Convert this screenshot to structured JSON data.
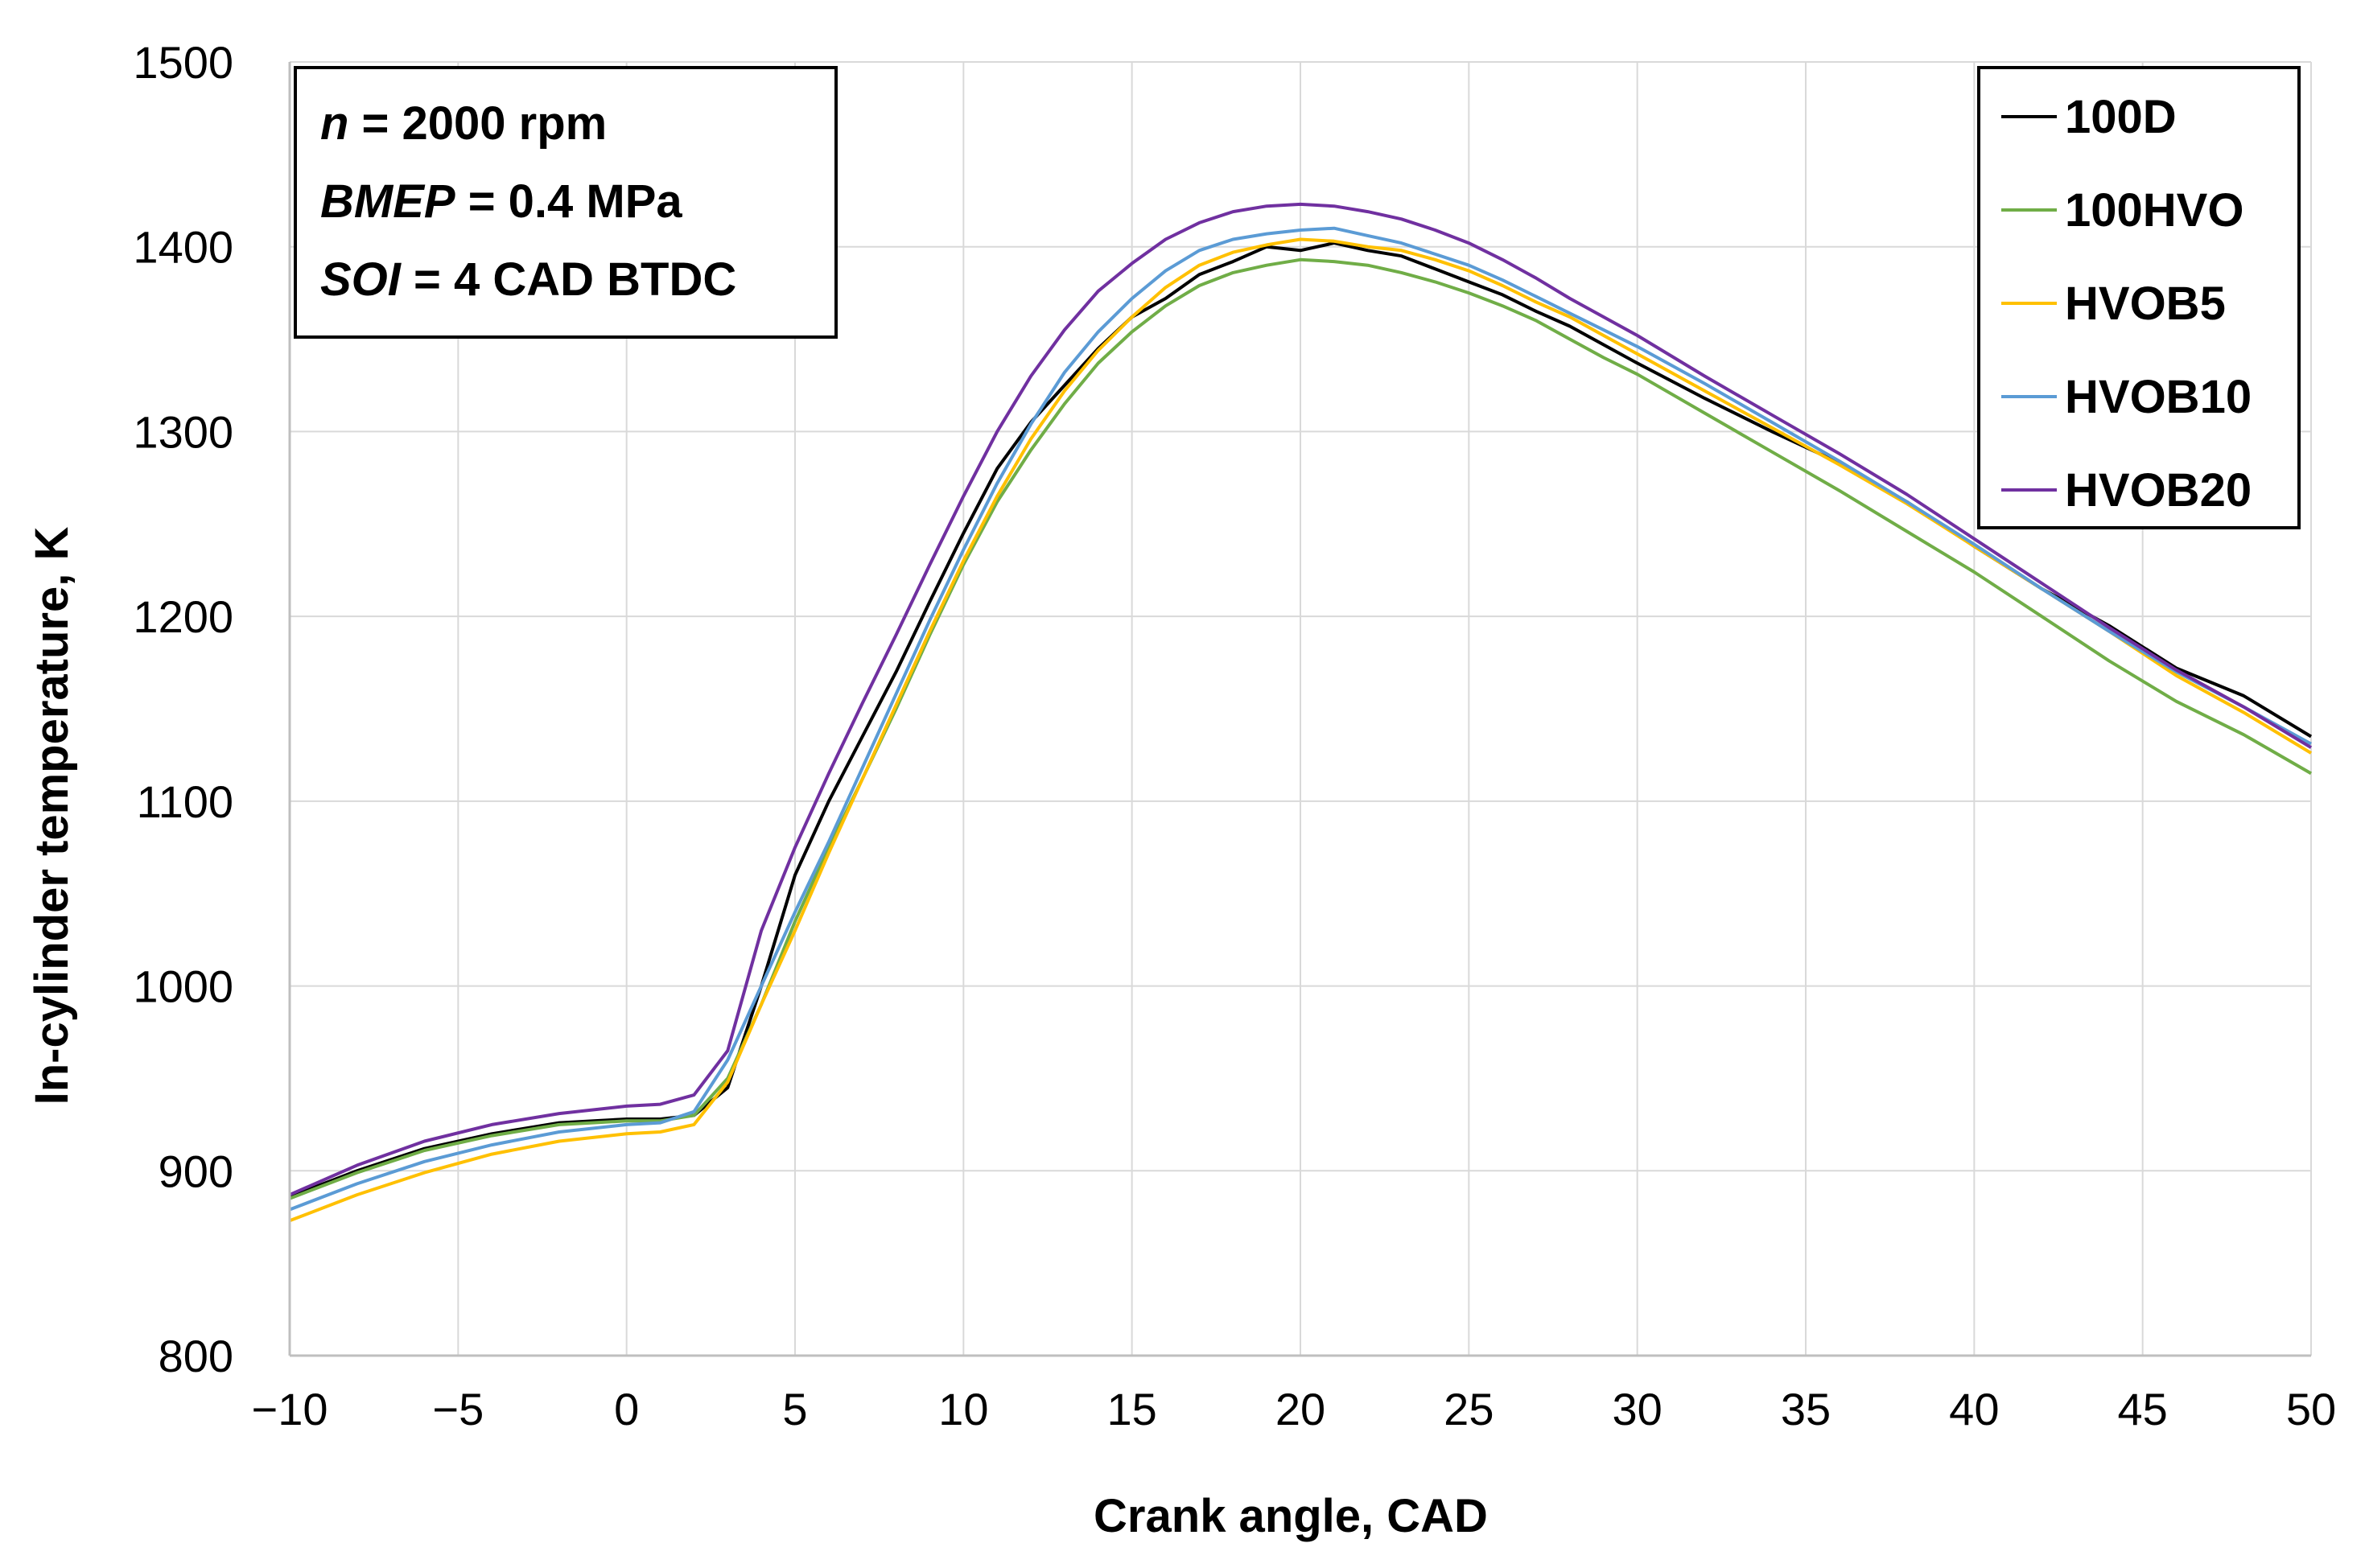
{
  "chart_data": {
    "type": "line",
    "title": "",
    "xlabel": "Crank angle, CAD",
    "ylabel": "In-cylinder temperature, K",
    "xlim": [
      -10,
      50
    ],
    "ylim": [
      800,
      1500
    ],
    "xticks": [
      -10,
      -5,
      0,
      5,
      10,
      15,
      20,
      25,
      30,
      35,
      40,
      45,
      50
    ],
    "yticks": [
      800,
      900,
      1000,
      1100,
      1200,
      1300,
      1400,
      1500
    ],
    "xtick_labels": [
      "−10",
      "−5",
      "0",
      "5",
      "10",
      "15",
      "20",
      "25",
      "30",
      "35",
      "40",
      "45",
      "50"
    ],
    "ytick_labels": [
      "800",
      "900",
      "1000",
      "1100",
      "1200",
      "1300",
      "1400",
      "1500"
    ],
    "grid": true,
    "legend_position": "top-right",
    "annotation": {
      "line1_var": "n",
      "line1_rest": " = 2000 rpm",
      "line2_var": "BMEP",
      "line2_rest": " = 0.4 MPa",
      "line3_var": "SOI",
      "line3_rest": " = 4 CAD BTDC"
    },
    "x": [
      -10,
      -8,
      -6,
      -4,
      -2,
      0,
      1,
      2,
      3,
      4,
      5,
      6,
      7,
      8,
      9,
      10,
      11,
      12,
      13,
      14,
      15,
      16,
      17,
      18,
      19,
      20,
      21,
      22,
      23,
      24,
      25,
      26,
      27,
      28,
      29,
      30,
      32,
      34,
      36,
      38,
      40,
      42,
      44,
      46,
      48,
      50
    ],
    "series": [
      {
        "name": "100D",
        "color": "#000000",
        "values": [
          886,
          900,
          912,
          920,
          926,
          928,
          928,
          930,
          945,
          1000,
          1060,
          1100,
          1135,
          1170,
          1208,
          1245,
          1280,
          1305,
          1325,
          1345,
          1362,
          1372,
          1385,
          1392,
          1400,
          1398,
          1402,
          1398,
          1395,
          1388,
          1381,
          1374,
          1365,
          1357,
          1347,
          1337,
          1318,
          1300,
          1283,
          1262,
          1238,
          1215,
          1195,
          1172,
          1157,
          1135
        ]
      },
      {
        "name": "100HVO",
        "color": "#70AD47",
        "values": [
          885,
          899,
          911,
          919,
          925,
          927,
          927,
          930,
          950,
          990,
          1035,
          1075,
          1112,
          1150,
          1190,
          1228,
          1262,
          1290,
          1315,
          1337,
          1354,
          1368,
          1379,
          1386,
          1390,
          1393,
          1392,
          1390,
          1386,
          1381,
          1375,
          1368,
          1360,
          1350,
          1340,
          1331,
          1310,
          1289,
          1268,
          1246,
          1224,
          1200,
          1176,
          1154,
          1136,
          1115
        ]
      },
      {
        "name": "HVOB5",
        "color": "#FFC000",
        "values": [
          873,
          887,
          899,
          909,
          916,
          920,
          921,
          925,
          948,
          990,
          1030,
          1072,
          1112,
          1152,
          1192,
          1230,
          1265,
          1296,
          1322,
          1344,
          1362,
          1378,
          1390,
          1397,
          1401,
          1404,
          1403,
          1400,
          1398,
          1393,
          1387,
          1379,
          1370,
          1362,
          1352,
          1342,
          1322,
          1302,
          1282,
          1261,
          1238,
          1215,
          1192,
          1168,
          1148,
          1126
        ]
      },
      {
        "name": "HVOB10",
        "color": "#5B9BD5",
        "values": [
          879,
          893,
          905,
          914,
          921,
          925,
          926,
          932,
          960,
          1000,
          1040,
          1078,
          1118,
          1158,
          1198,
          1236,
          1272,
          1304,
          1332,
          1354,
          1372,
          1387,
          1398,
          1404,
          1407,
          1409,
          1410,
          1406,
          1402,
          1396,
          1390,
          1382,
          1373,
          1364,
          1355,
          1346,
          1326,
          1305,
          1284,
          1262,
          1239,
          1215,
          1192,
          1170,
          1151,
          1131
        ]
      },
      {
        "name": "HVOB20",
        "color": "#7030A0",
        "values": [
          887,
          903,
          916,
          925,
          931,
          935,
          936,
          941,
          965,
          1030,
          1075,
          1115,
          1153,
          1190,
          1228,
          1265,
          1300,
          1330,
          1355,
          1376,
          1391,
          1404,
          1413,
          1419,
          1422,
          1423,
          1422,
          1419,
          1415,
          1409,
          1402,
          1393,
          1383,
          1372,
          1362,
          1352,
          1330,
          1309,
          1288,
          1266,
          1242,
          1218,
          1194,
          1171,
          1151,
          1129
        ]
      }
    ]
  }
}
